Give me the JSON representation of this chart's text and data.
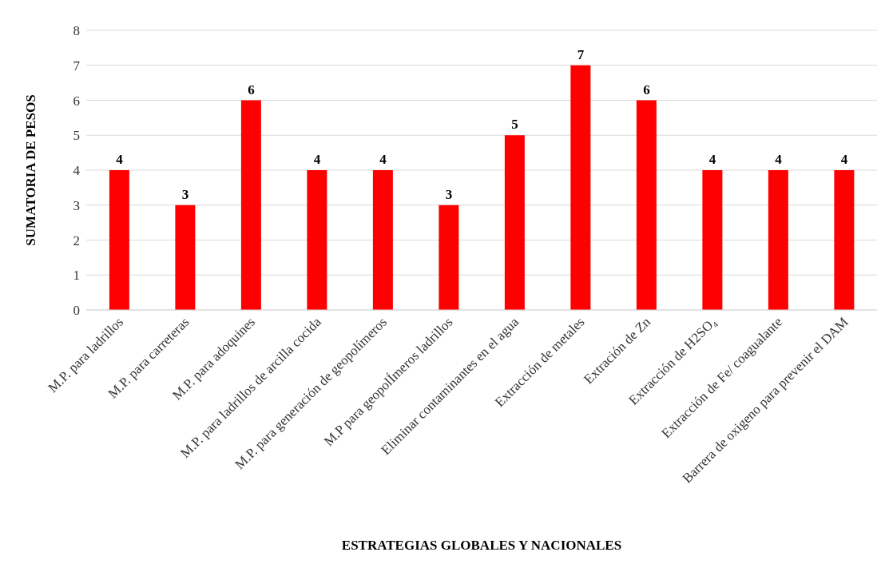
{
  "chart_data": {
    "type": "bar",
    "xlabel": "ESTRATEGIAS GLOBALES Y NACIONALES",
    "ylabel": "SUMATORIA DE PESOS",
    "categories": [
      "M.P. para ladrillos",
      "M.P. para carreteras",
      "M.P. para adoquines",
      "M.P. para ladrillos de arcilla cocida",
      "M.P. para generación de geopolímeros",
      "M.P para geopolÍmeros ladrillos",
      "Eliminar contaminantes en el agua",
      "Extracción de metales",
      "Extración de Zn",
      "Extracción de H2SO₄",
      "Extracción de Fe/ coagualante",
      "Barrera de oxigeno para prevenir el DAM"
    ],
    "values": [
      4,
      3,
      6,
      4,
      4,
      3,
      5,
      7,
      6,
      4,
      4,
      4
    ],
    "color": "#ff0000",
    "ylim": [
      0,
      8
    ],
    "yticks": [
      0,
      1,
      2,
      3,
      4,
      5,
      6,
      7,
      8
    ],
    "grid": "y",
    "data_labels": true
  }
}
